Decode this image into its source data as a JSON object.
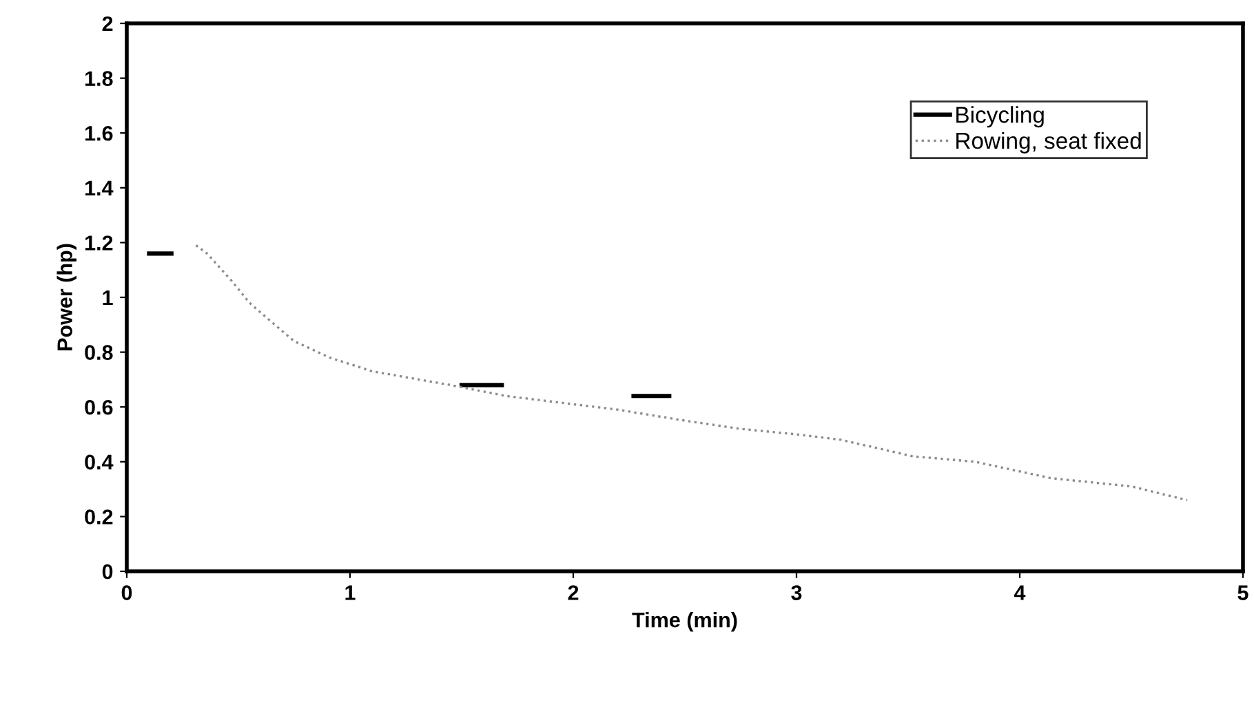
{
  "chart_data": {
    "type": "line",
    "xlabel": "Time (min)",
    "ylabel": "Power (hp)",
    "xlim": [
      0,
      5
    ],
    "ylim": [
      0,
      2
    ],
    "xticks": [
      0,
      1,
      2,
      3,
      4,
      5
    ],
    "yticks": [
      0,
      0.2,
      0.4,
      0.6,
      0.8,
      1,
      1.2,
      1.4,
      1.6,
      1.8,
      2
    ],
    "grid": false,
    "legend": "top right",
    "series": [
      {
        "name": "Bicycling",
        "color": "#000000",
        "line_style": "solid",
        "x": [
          0.1,
          0.2,
          0.9,
          1.5,
          1.68,
          2.0,
          2.27,
          2.43
        ],
        "values": [
          1.16,
          1.16,
          null,
          0.68,
          0.68,
          null,
          0.64,
          0.64
        ]
      },
      {
        "name": "Rowing, seat fixed",
        "color": "#8c8c8c",
        "line_style": "dotted",
        "x": [
          0.31,
          0.36,
          0.47,
          0.55,
          0.62,
          0.75,
          0.91,
          1.1,
          1.45,
          1.7,
          2.0,
          2.2,
          2.5,
          2.75,
          3.0,
          3.2,
          3.52,
          3.8,
          4.14,
          4.5,
          4.75
        ],
        "values": [
          1.19,
          1.16,
          1.06,
          0.98,
          0.93,
          0.84,
          0.78,
          0.73,
          0.68,
          0.64,
          0.61,
          0.59,
          0.55,
          0.52,
          0.5,
          0.48,
          0.42,
          0.4,
          0.34,
          0.31,
          0.26
        ]
      }
    ]
  }
}
